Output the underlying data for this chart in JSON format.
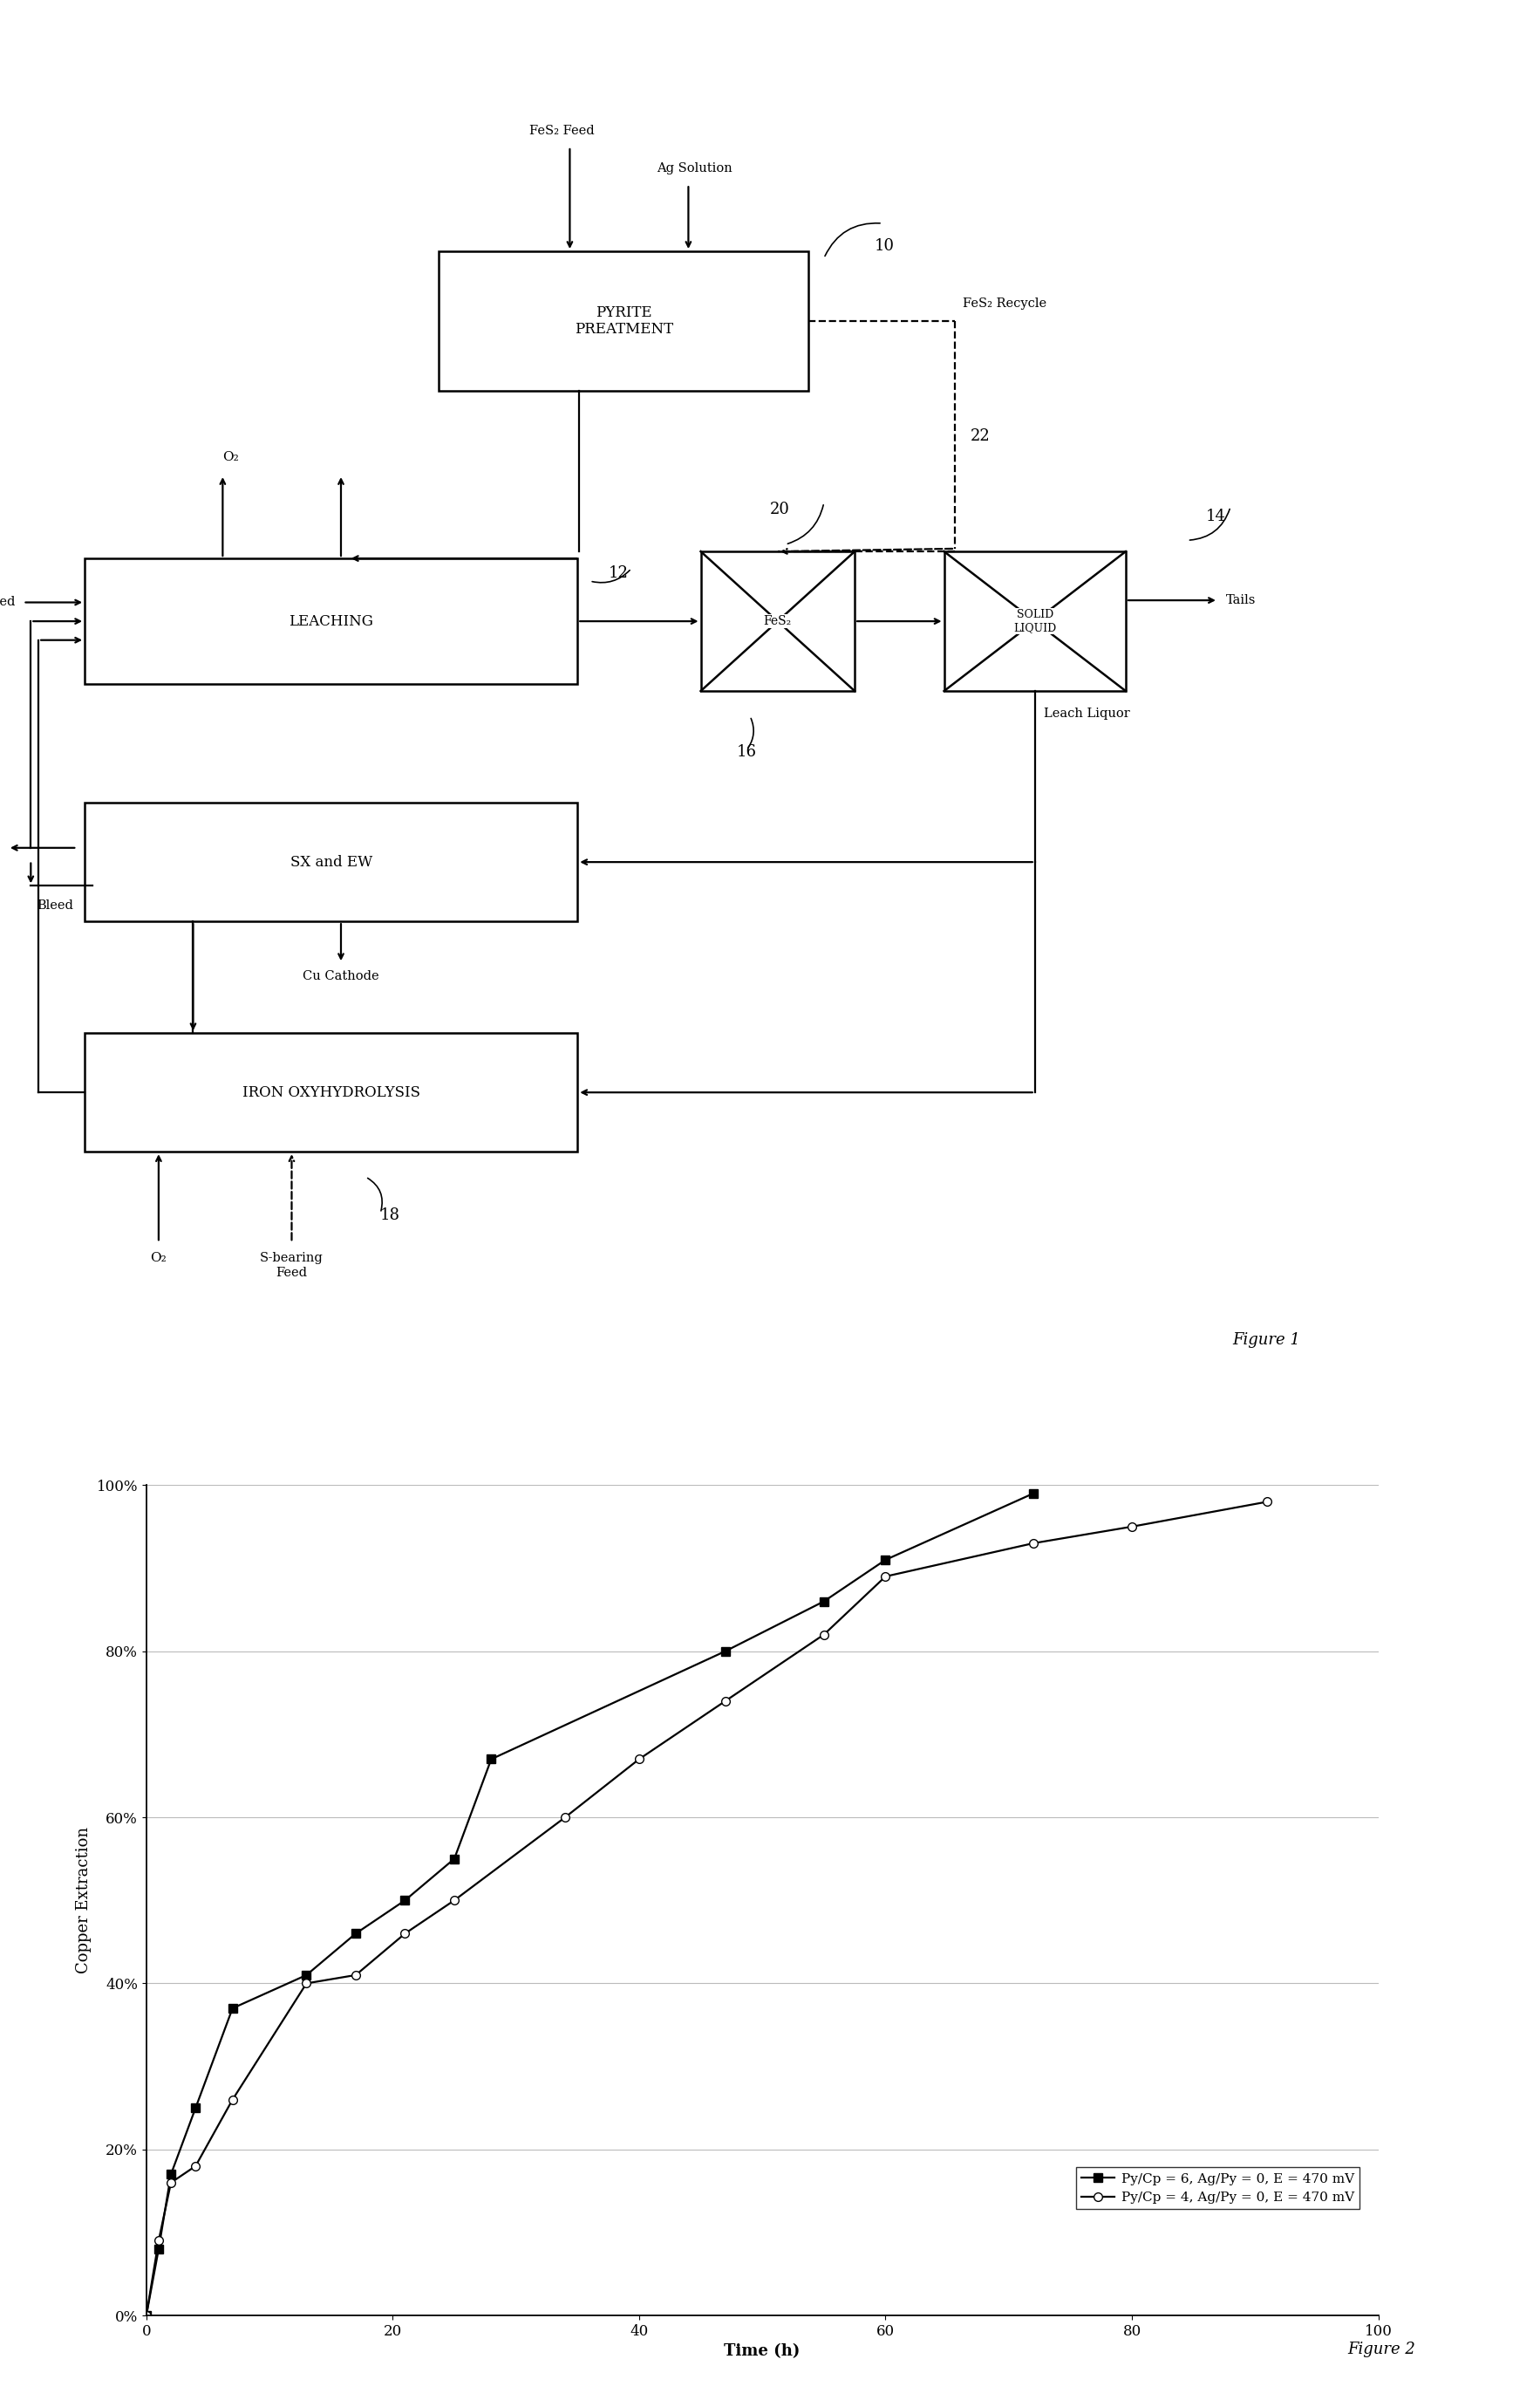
{
  "fig2": {
    "series1_x": [
      0,
      1,
      2,
      4,
      7,
      13,
      17,
      21,
      25,
      28,
      47,
      55,
      60,
      72
    ],
    "series1_y": [
      0,
      0.08,
      0.17,
      0.25,
      0.37,
      0.41,
      0.46,
      0.5,
      0.55,
      0.67,
      0.8,
      0.86,
      0.91,
      0.99
    ],
    "series2_x": [
      0,
      1,
      2,
      4,
      7,
      13,
      17,
      21,
      25,
      34,
      40,
      47,
      55,
      60,
      72,
      80,
      91
    ],
    "series2_y": [
      0,
      0.09,
      0.16,
      0.18,
      0.26,
      0.4,
      0.41,
      0.46,
      0.5,
      0.6,
      0.67,
      0.74,
      0.82,
      0.89,
      0.93,
      0.95,
      0.98
    ],
    "xlabel": "Time (h)",
    "ylabel": "Copper Extraction",
    "xlim": [
      0,
      100
    ],
    "ylim": [
      0,
      1.0
    ],
    "xticks": [
      0,
      20,
      40,
      60,
      80,
      100
    ],
    "yticks": [
      0.0,
      0.2,
      0.4,
      0.6,
      0.8,
      1.0
    ],
    "yticklabels": [
      "0%",
      "20%",
      "40%",
      "60%",
      "80%",
      "100%"
    ],
    "legend_labels": [
      "Py/Cp = 6, Ag/Py = 0, E = 470 mV",
      "Py/Cp = 4, Ag/Py = 0, E = 470 mV"
    ]
  },
  "background_color": "#ffffff",
  "line_color": "#000000",
  "font_family": "DejaVu Serif"
}
